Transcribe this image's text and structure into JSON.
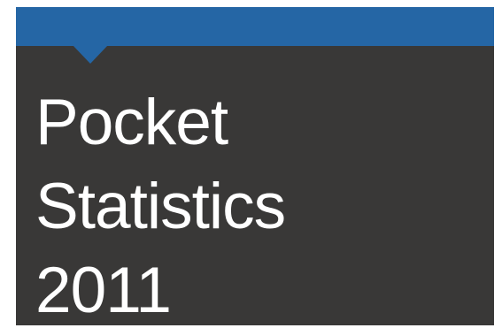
{
  "cover": {
    "title_lines": [
      "Pocket",
      "Statistics",
      "2011"
    ],
    "colors": {
      "banner": "#2566a5",
      "background": "#393837",
      "text": "#ffffff"
    }
  }
}
